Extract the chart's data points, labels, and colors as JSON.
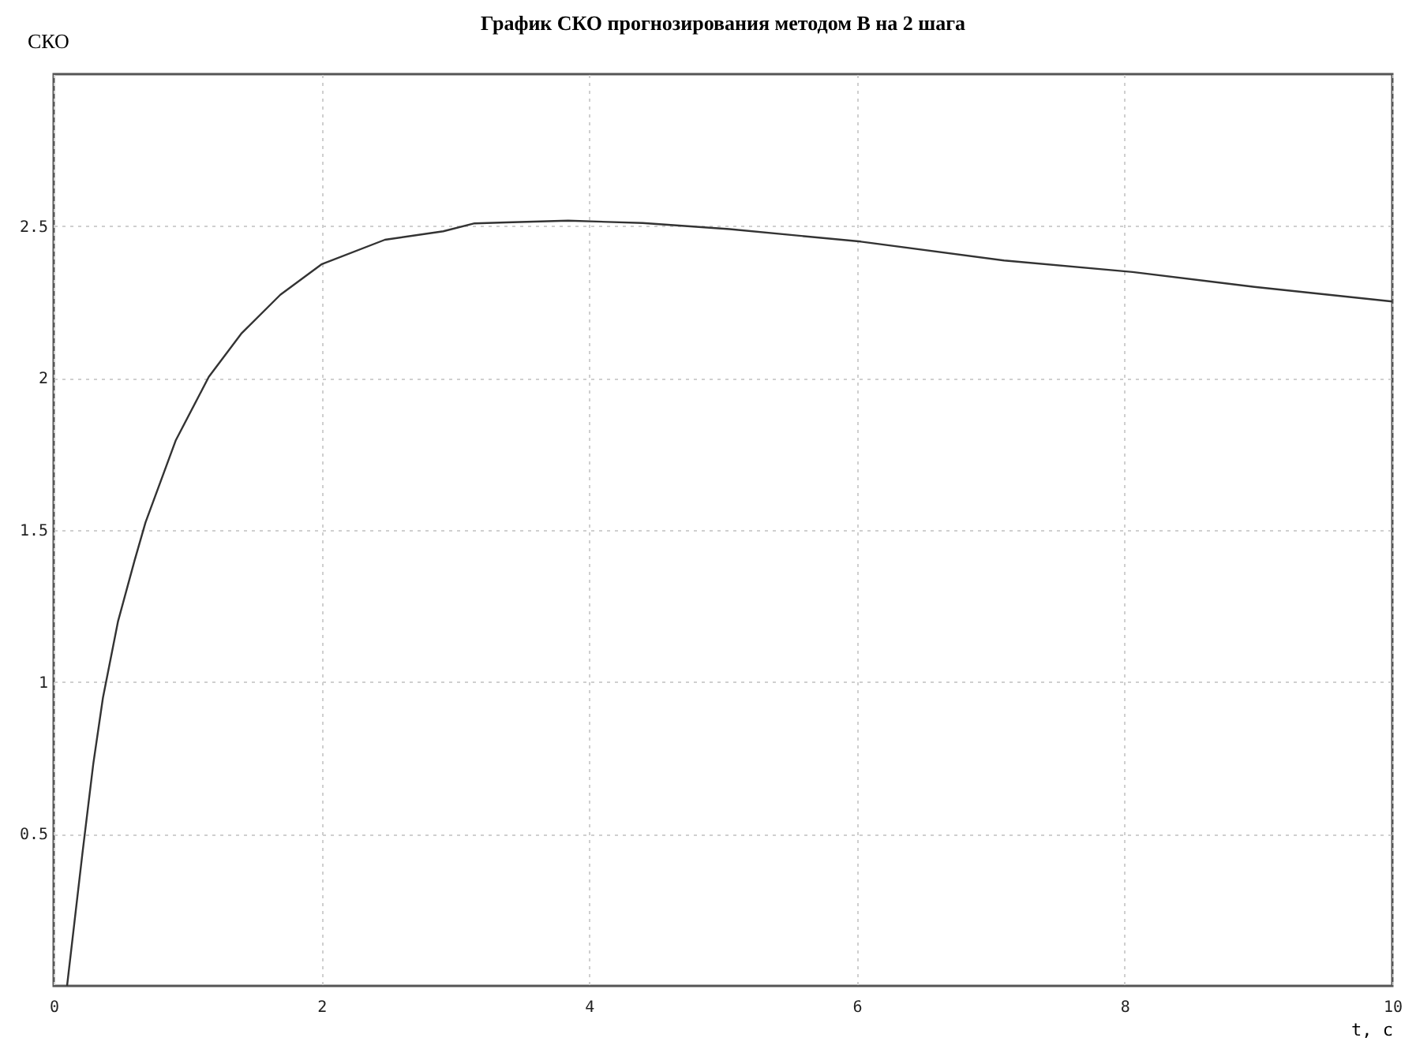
{
  "chart_data": {
    "type": "line",
    "title": "График СКО прогнозирования методом В на 2 шага",
    "xlabel": "t, c",
    "ylabel": "СКО",
    "x": [
      0.1,
      0.214,
      0.296,
      0.368,
      0.481,
      0.604,
      0.686,
      0.913,
      1.159,
      1.405,
      1.693,
      2.0,
      2.474,
      2.91,
      3.144,
      3.378,
      3.843,
      4.4,
      5.05,
      6.03,
      7.1,
      8.06,
      8.97,
      10
    ],
    "series": [
      {
        "color": "#333333",
        "values": [
          0,
          0.433,
          0.731,
          0.948,
          1.2,
          1.399,
          1.525,
          1.796,
          2.004,
          2.148,
          2.274,
          2.374,
          2.455,
          2.483,
          2.509,
          2.512,
          2.518,
          2.51,
          2.49,
          2.449,
          2.387,
          2.349,
          2.3,
          2.252
        ]
      }
    ],
    "xlim": [
      0,
      10
    ],
    "xticks": [
      0,
      2,
      4,
      6,
      8,
      10
    ],
    "ylim": [
      0,
      3
    ],
    "yticks": [
      0.5,
      1,
      1.5,
      2,
      2.5
    ],
    "grid": true,
    "legend": false,
    "marker": "none",
    "line_style": "solid"
  }
}
